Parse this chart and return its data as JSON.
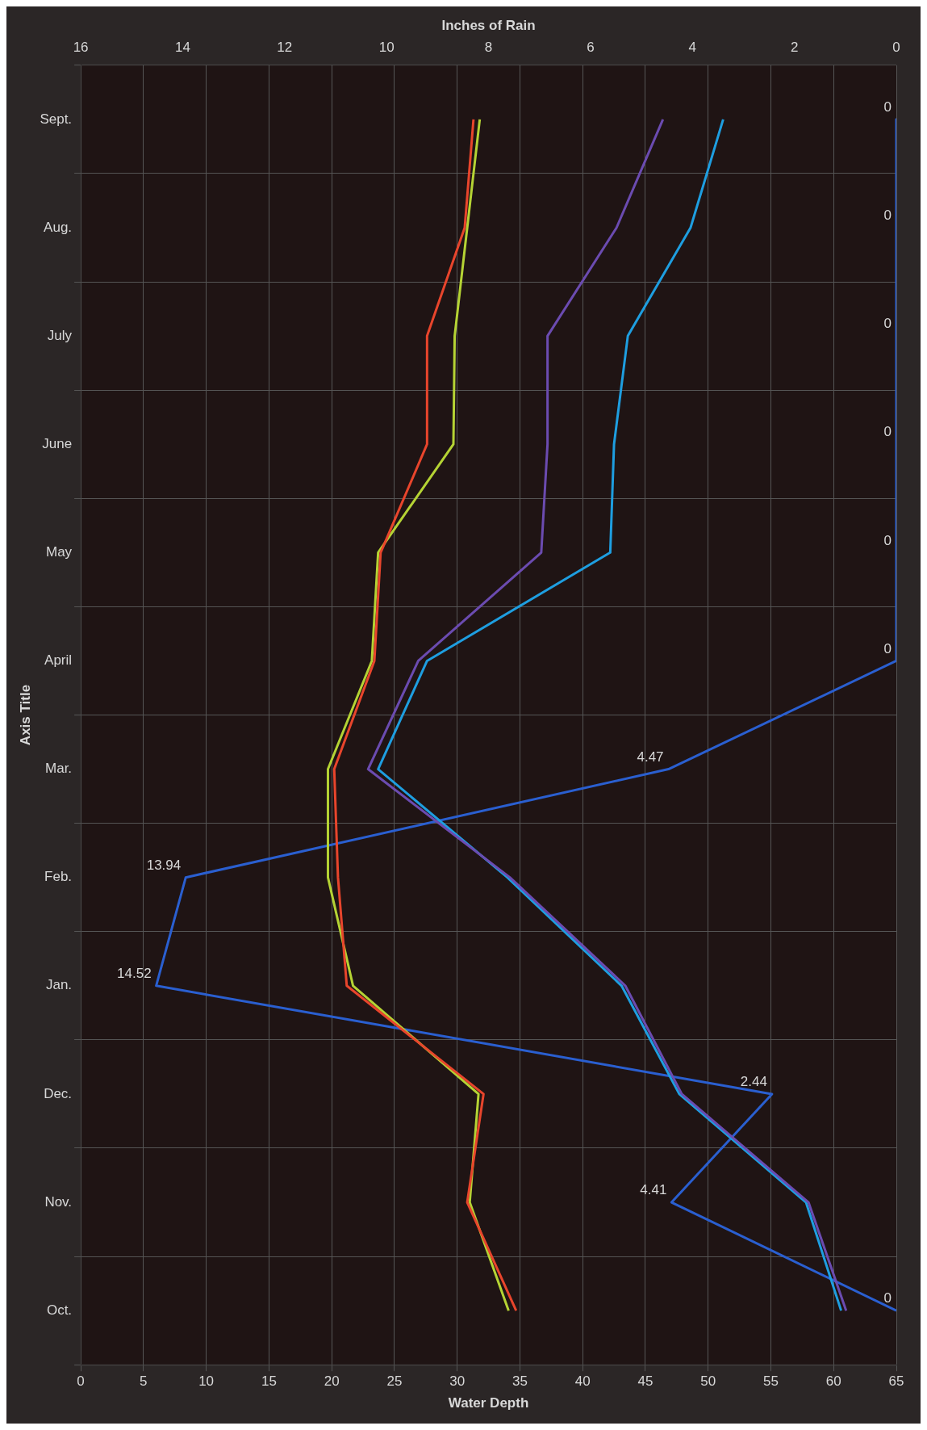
{
  "chart_data": {
    "type": "line",
    "orientation": "horizontal",
    "xlabel": "Water Depth",
    "x2label": "Inches of Rain",
    "ylabel": "Axis Title",
    "categories": [
      "Sept.",
      "Aug.",
      "July",
      "June",
      "May",
      "April",
      "Mar.",
      "Feb.",
      "Jan.",
      "Dec.",
      "Nov.",
      "Oct."
    ],
    "xlim": [
      0,
      65
    ],
    "xticks": [
      0,
      5,
      10,
      15,
      20,
      25,
      30,
      35,
      40,
      45,
      50,
      55,
      60,
      65
    ],
    "x2lim": [
      16,
      0
    ],
    "x2ticks": [
      16,
      14,
      12,
      10,
      8,
      6,
      4,
      2,
      0
    ],
    "grid": true,
    "marker": "none",
    "series": [
      {
        "color": "#e8452c",
        "values": [
          31.3,
          30.6,
          27.6,
          27.6,
          23.9,
          23.4,
          20.2,
          20.5,
          21.2,
          32.1,
          30.8,
          34.7
        ]
      },
      {
        "color": "#b5d334",
        "values": [
          31.8,
          30.8,
          29.8,
          29.7,
          23.7,
          23.2,
          19.7,
          19.7,
          21.7,
          31.7,
          31.0,
          34.1
        ]
      },
      {
        "color": "#6b4bb0",
        "values": [
          46.4,
          42.7,
          37.2,
          37.2,
          36.7,
          26.9,
          22.9,
          34.2,
          43.4,
          47.9,
          58.0,
          61.0
        ]
      },
      {
        "color": "#1e9ee0",
        "values": [
          51.2,
          48.6,
          43.6,
          42.5,
          42.2,
          27.6,
          23.7,
          34.0,
          43.1,
          47.7,
          57.8,
          60.6
        ]
      },
      {
        "color": "#2a5fd0",
        "axis": "x2",
        "values": [
          0,
          0,
          0,
          0,
          0,
          0,
          4.47,
          13.94,
          14.52,
          2.44,
          4.41,
          0
        ],
        "value_labels": [
          "0",
          "0",
          "0",
          "0",
          "0",
          "0",
          "4.47",
          "13.94",
          "14.52",
          "2.44",
          "4.41",
          "0"
        ]
      }
    ]
  }
}
